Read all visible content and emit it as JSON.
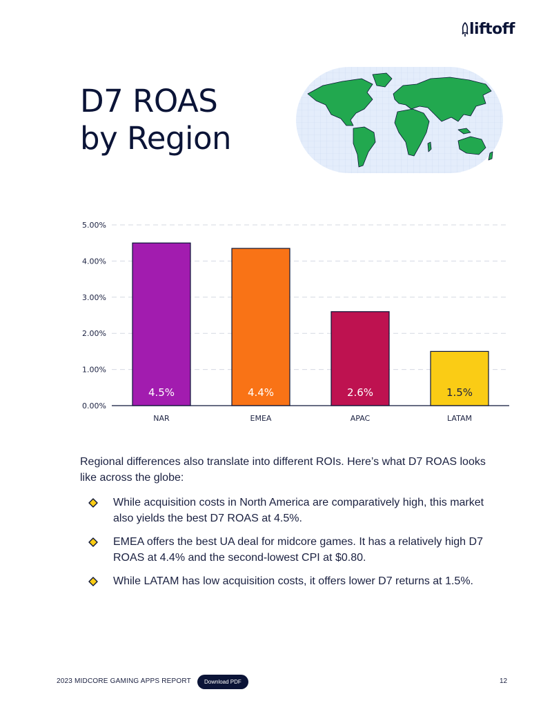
{
  "brand": {
    "logo_text": "liftoff"
  },
  "page": {
    "title_line1": "D7 ROAS",
    "title_line2": "by Region"
  },
  "chart_data": {
    "type": "bar",
    "categories": [
      "NAR",
      "EMEA",
      "APAC",
      "LATAM"
    ],
    "values": [
      4.5,
      4.35,
      2.6,
      1.5
    ],
    "data_labels": [
      "4.5%",
      "4.4%",
      "2.6%",
      "1.5%"
    ],
    "colors": [
      "#a21caf",
      "#f97316",
      "#be1250",
      "#facc15"
    ],
    "label_colors": [
      "#ffffff",
      "#ffffff",
      "#ffffff",
      "#1a2040"
    ],
    "yticks": [
      "0.00%",
      "1.00%",
      "2.00%",
      "3.00%",
      "4.00%",
      "5.00%"
    ],
    "ylim": [
      0,
      5
    ],
    "title": "",
    "xlabel": "",
    "ylabel": "",
    "grid": true
  },
  "body": {
    "intro": "Regional differences also translate into different ROIs. Here’s what D7 ROAS looks like across the globe:",
    "bullets": [
      "While acquisition costs in North America are comparatively high, this market also yields the best D7 ROAS at 4.5%.",
      "EMEA offers the best UA deal for midcore games. It has a relatively high D7 ROAS at 4.4% and the second-lowest CPI at $0.80.",
      "While LATAM has low acquisition costs, it offers lower D7 returns at 1.5%."
    ]
  },
  "footer": {
    "report_title": "2023 MIDCORE GAMING APPS REPORT",
    "download_label": "Download PDF",
    "page_number": "12"
  }
}
